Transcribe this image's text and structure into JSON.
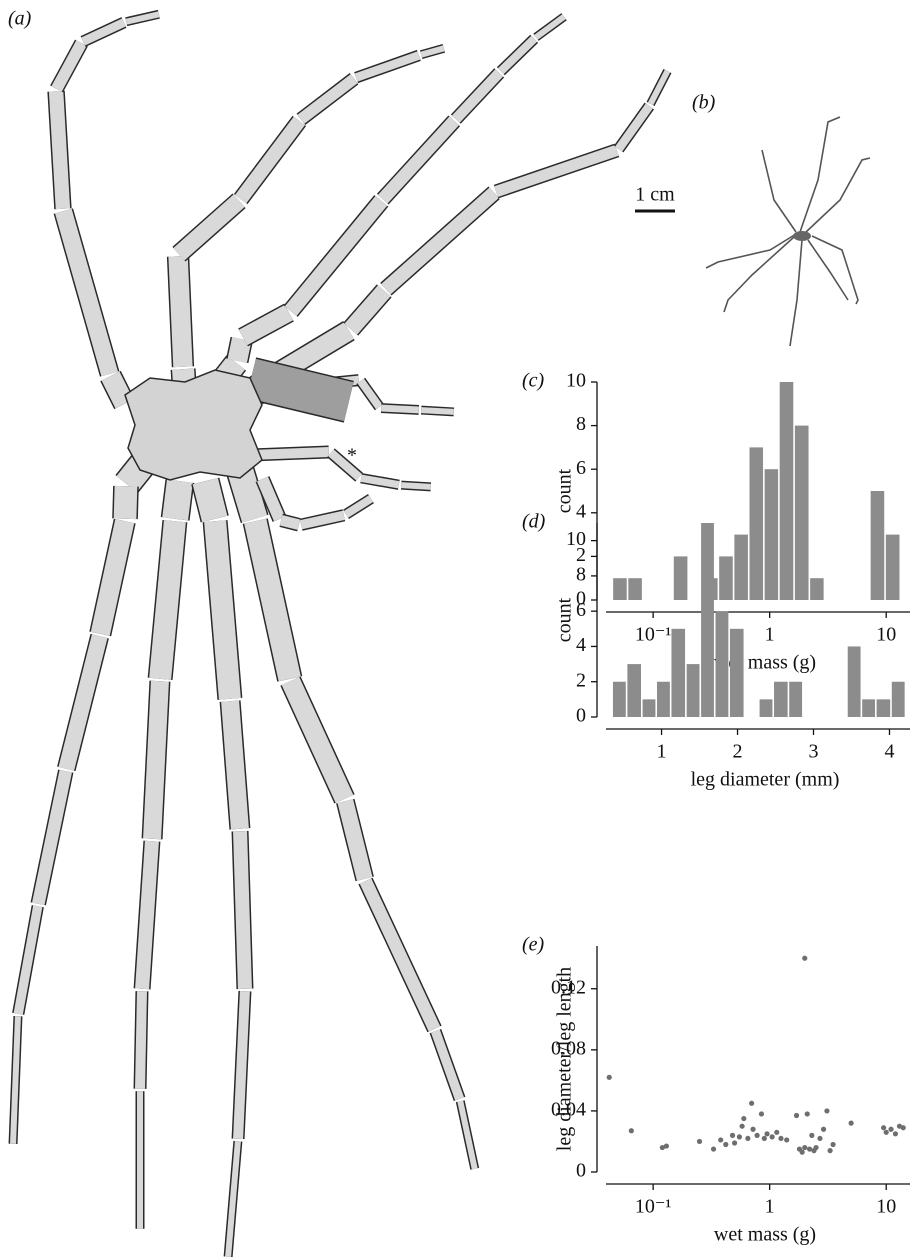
{
  "panels": {
    "a": "(a)",
    "b": "(b)"
  },
  "scale_bar": "1 cm",
  "annotation": "*",
  "chart_data": [
    {
      "type": "histogram",
      "panel": "(c)",
      "xlabel": "wet mass (g)",
      "ylabel": "count",
      "xscale": "log",
      "color": "#8c8c8c",
      "bins": [
        0.0447,
        0.0603,
        0.0813,
        0.11,
        0.148,
        0.2,
        0.269,
        0.363,
        0.49,
        0.661,
        0.891,
        1.2,
        1.62,
        2.19,
        2.95,
        3.98,
        5.37,
        7.24,
        9.77,
        13.2
      ],
      "values": [
        1,
        1,
        0,
        0,
        2,
        0,
        1,
        2,
        3,
        7,
        6,
        10,
        8,
        1,
        0,
        0,
        0,
        5,
        3
      ],
      "xlim": [
        0.035,
        16
      ],
      "xticks": [
        {
          "value": 0.1,
          "label": "10⁻¹"
        },
        1,
        10
      ],
      "ylim": [
        0,
        10
      ],
      "yticks": [
        0,
        2,
        4,
        6,
        8,
        10
      ]
    },
    {
      "type": "histogram",
      "panel": "(d)",
      "xlabel": "leg diameter (mm)",
      "ylabel": "count",
      "xscale": "linear",
      "color": "#8c8c8c",
      "bins": [
        0.35,
        0.54,
        0.74,
        0.93,
        1.12,
        1.32,
        1.51,
        1.7,
        1.89,
        2.09,
        2.28,
        2.47,
        2.67,
        2.86,
        3.05,
        3.25,
        3.44,
        3.63,
        3.82,
        4.02,
        4.21
      ],
      "values": [
        2,
        3,
        1,
        2,
        5,
        3,
        11,
        6,
        5,
        0,
        1,
        2,
        2,
        0,
        0,
        0,
        4,
        1,
        1,
        2
      ],
      "xlim": [
        0.19,
        4.27
      ],
      "xticks": [
        1,
        2,
        3,
        4
      ],
      "ylim": [
        0,
        11
      ],
      "yticks": [
        0,
        2,
        4,
        6,
        8,
        10
      ]
    },
    {
      "type": "scatter",
      "panel": "(e)",
      "xlabel": "wet mass (g)",
      "ylabel": "leg diameter/leg length",
      "xscale": "log",
      "color": "#6e6e6e",
      "x": [
        0.042,
        0.065,
        0.12,
        0.13,
        0.25,
        0.33,
        0.38,
        0.42,
        0.48,
        0.5,
        0.55,
        0.58,
        0.6,
        0.65,
        0.7,
        0.72,
        0.78,
        0.85,
        0.9,
        0.95,
        1.05,
        1.15,
        1.25,
        1.4,
        1.7,
        1.8,
        1.9,
        2.0,
        2.0,
        2.1,
        2.2,
        2.3,
        2.4,
        2.5,
        2.7,
        2.9,
        3.1,
        3.3,
        3.5,
        5.0,
        9.5,
        10,
        11,
        12,
        13,
        14
      ],
      "y": [
        0.062,
        0.027,
        0.016,
        0.017,
        0.02,
        0.015,
        0.021,
        0.018,
        0.024,
        0.019,
        0.023,
        0.03,
        0.035,
        0.022,
        0.045,
        0.028,
        0.024,
        0.038,
        0.022,
        0.025,
        0.023,
        0.026,
        0.022,
        0.021,
        0.037,
        0.015,
        0.013,
        0.14,
        0.016,
        0.038,
        0.015,
        0.024,
        0.014,
        0.016,
        0.022,
        0.028,
        0.04,
        0.014,
        0.018,
        0.032,
        0.029,
        0.026,
        0.028,
        0.025,
        0.03,
        0.029
      ],
      "xlim": [
        0.035,
        16
      ],
      "xticks": [
        {
          "value": 0.1,
          "label": "10⁻¹"
        },
        1,
        10
      ],
      "ylim": [
        0,
        0.148
      ],
      "yticks": [
        0,
        0.04,
        0.08,
        0.12
      ]
    }
  ]
}
